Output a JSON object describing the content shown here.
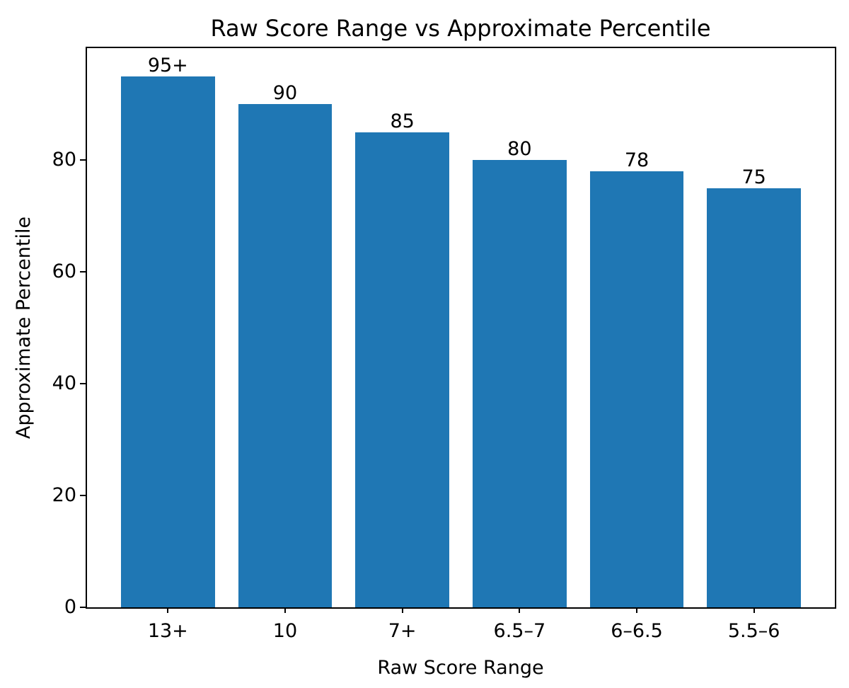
{
  "chart_data": {
    "type": "bar",
    "title": "Raw Score Range vs Approximate Percentile",
    "xlabel": "Raw Score Range",
    "ylabel": "Approximate Percentile",
    "categories": [
      "13+",
      "10",
      "7+",
      "6.5–7",
      "6–6.5",
      "5.5–6"
    ],
    "values": [
      95,
      90,
      85,
      80,
      78,
      75
    ],
    "bar_labels": [
      "95+",
      "90",
      "85",
      "80",
      "78",
      "75"
    ],
    "yticks": [
      0,
      20,
      40,
      60,
      80
    ],
    "ylim": [
      0,
      100
    ],
    "bar_color": "#1f77b4",
    "text_color": "#000000",
    "frame_color": "#000000",
    "background_color": "#ffffff",
    "grid": false,
    "legend": "none",
    "bar_width_fraction": 0.8
  }
}
